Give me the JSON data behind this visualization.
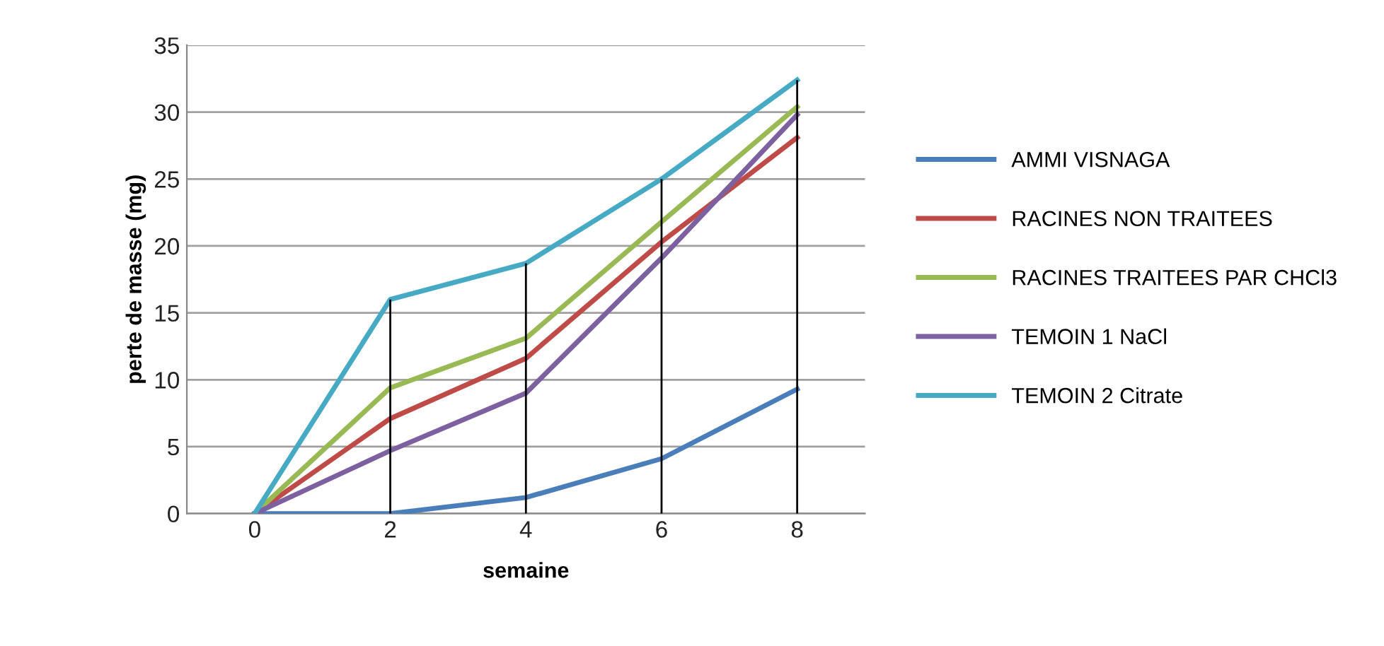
{
  "chart_data": {
    "type": "line",
    "xlabel": "semaine",
    "ylabel": "perte de masse (mg)",
    "categories": [
      "0",
      "2",
      "4",
      "6",
      "8"
    ],
    "series": [
      {
        "name": "AMMI VISNAGA",
        "color": "#4a7ebb",
        "values": [
          0,
          0,
          1.2,
          4.1,
          9.3
        ]
      },
      {
        "name": "RACINES NON TRAITEES",
        "color": "#be4b48",
        "values": [
          0,
          7.1,
          11.6,
          20.3,
          28.1
        ]
      },
      {
        "name": "RACINES TRAITEES PAR CHCl3",
        "color": "#98b954",
        "values": [
          0,
          9.4,
          13.1,
          21.8,
          30.4
        ]
      },
      {
        "name": "TEMOIN 1 NaCl",
        "color": "#7d60a0",
        "values": [
          0,
          4.7,
          9.0,
          19.1,
          29.8
        ]
      },
      {
        "name": "TEMOIN 2 Citrate",
        "color": "#46aac5",
        "values": [
          0,
          16.0,
          18.7,
          25.0,
          32.4
        ]
      }
    ],
    "ref_lines": [
      {
        "axis": "x",
        "value": "2",
        "color": "#000000"
      },
      {
        "axis": "x",
        "value": "4",
        "color": "#000000"
      },
      {
        "axis": "x",
        "value": "6",
        "color": "#000000"
      },
      {
        "axis": "x",
        "value": "8",
        "color": "#000000"
      }
    ],
    "ylim": [
      0,
      35
    ],
    "yticks": [
      0,
      5,
      10,
      15,
      20,
      25,
      30,
      35
    ],
    "grid": "y",
    "legend": "right",
    "marker": "none",
    "line_style": "solid"
  }
}
